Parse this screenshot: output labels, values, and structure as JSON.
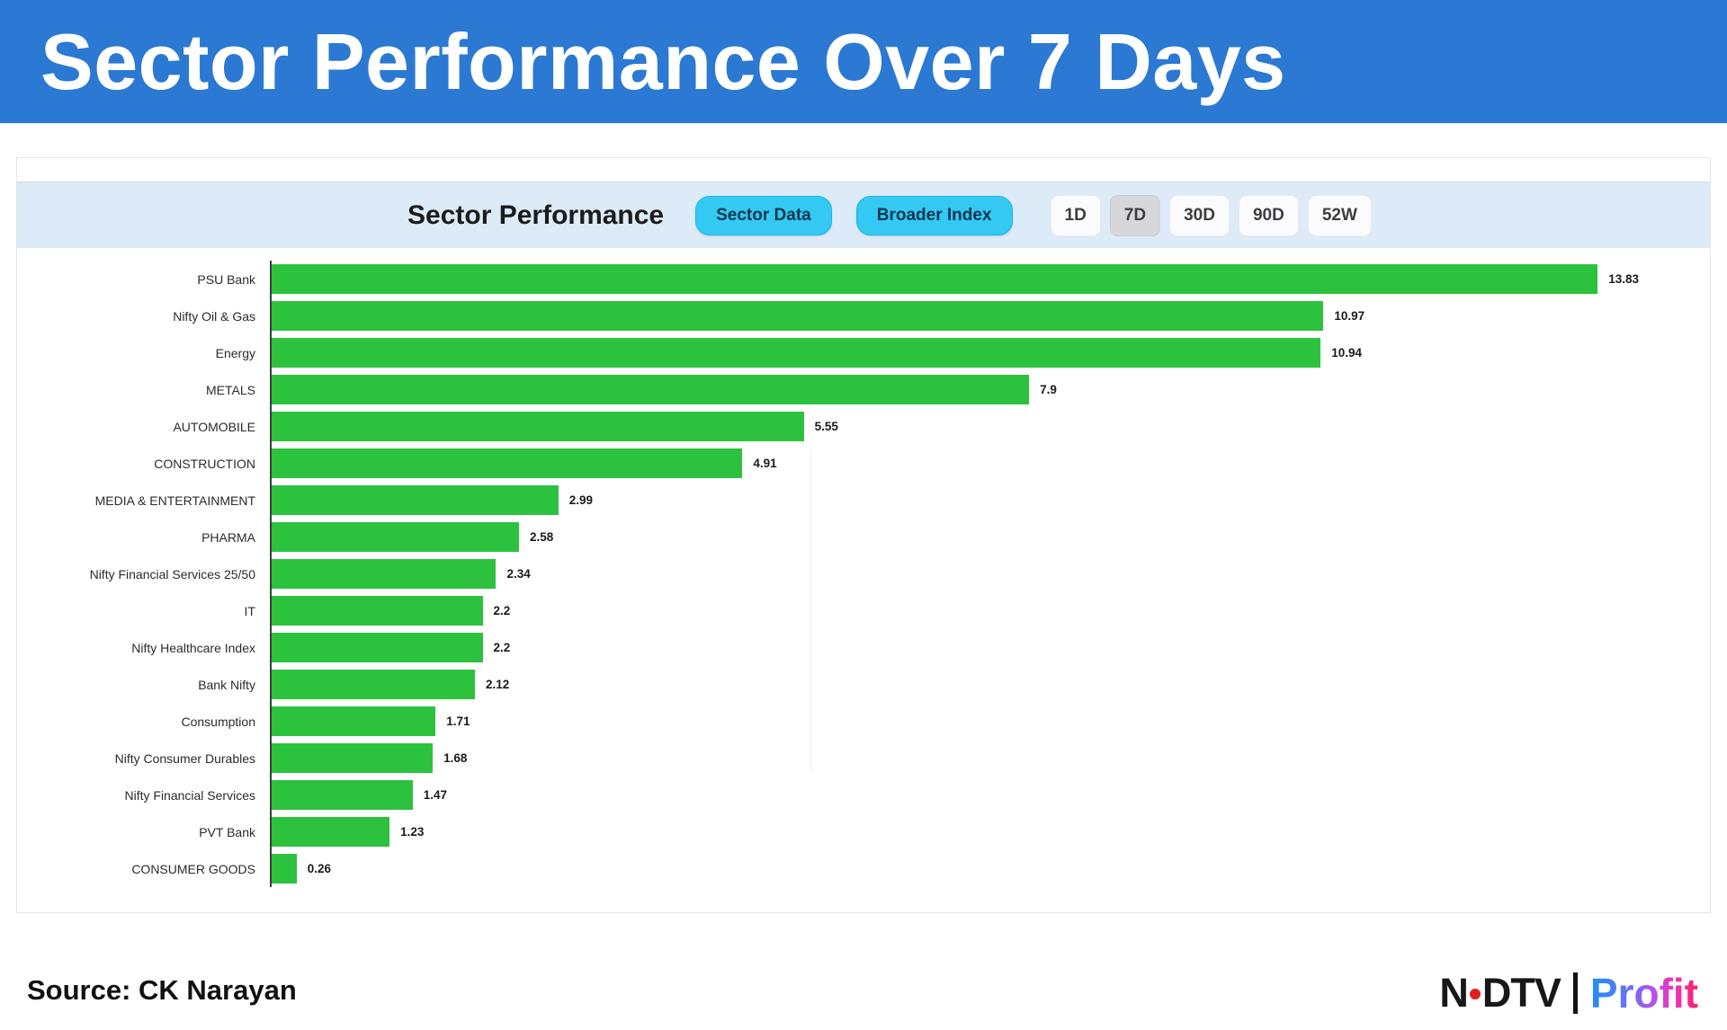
{
  "banner": {
    "title": "Sector Performance Over 7 Days"
  },
  "theme": {
    "banner_bg": "#2b79d2",
    "band_bg": "#dcebf7",
    "pill_bg": "#33c9f2",
    "bar_color": "#2dc23e"
  },
  "panel": {
    "header": {
      "title": "Sector Performance",
      "buttons": [
        {
          "label": "Sector Data"
        },
        {
          "label": "Broader Index"
        }
      ],
      "ranges": [
        {
          "label": "1D",
          "selected": false
        },
        {
          "label": "7D",
          "selected": true
        },
        {
          "label": "30D",
          "selected": false
        },
        {
          "label": "90D",
          "selected": false
        },
        {
          "label": "52W",
          "selected": false
        }
      ]
    }
  },
  "chart_data": {
    "type": "bar",
    "orientation": "horizontal",
    "title": "Sector Performance",
    "categories": [
      "PSU Bank",
      "Nifty Oil & Gas",
      "Energy",
      "METALS",
      "AUTOMOBILE",
      "CONSTRUCTION",
      "MEDIA & ENTERTAINMENT",
      "PHARMA",
      "Nifty Financial Services 25/50",
      "IT",
      "Nifty Healthcare Index",
      "Bank Nifty",
      "Consumption",
      "Nifty Consumer Durables",
      "Nifty Financial Services",
      "PVT Bank",
      "CONSUMER GOODS"
    ],
    "values": [
      13.83,
      10.97,
      10.94,
      7.9,
      5.55,
      4.91,
      2.99,
      2.58,
      2.34,
      2.2,
      2.2,
      2.12,
      1.71,
      1.68,
      1.47,
      1.23,
      0.26
    ],
    "bar_color": "#2dc23e",
    "xlim": [
      0,
      15
    ],
    "value_labels": true,
    "grid": false,
    "legend": false
  },
  "footer": {
    "source": "Source: CK Narayan",
    "logo": {
      "ndtv_left": "N",
      "ndtv_right": "DTV",
      "profit": "Profit"
    }
  }
}
